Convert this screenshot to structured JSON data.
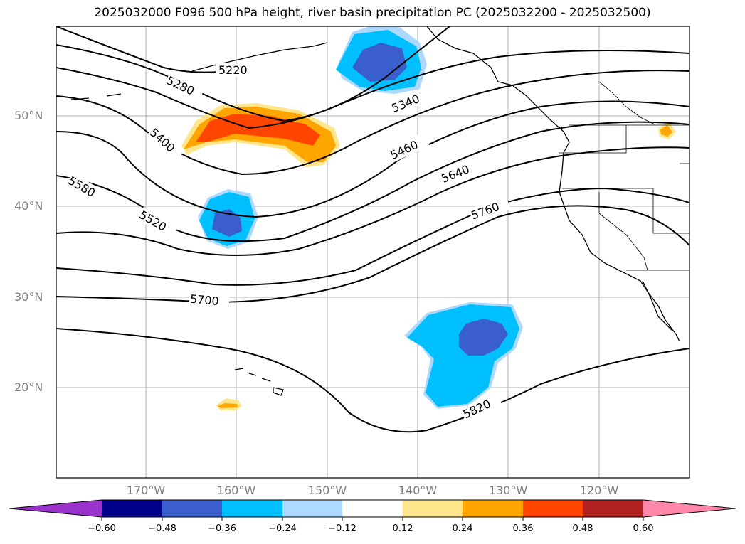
{
  "title": "2025032000 F096 500 hPa height, river basin precipitation PC (2025032200 - 2025032500)",
  "map": {
    "lat_labels": [
      "50°N",
      "40°N",
      "30°N",
      "20°N"
    ],
    "lon_labels": [
      "170°W",
      "160°W",
      "150°W",
      "140°W",
      "130°W",
      "120°W"
    ],
    "contour_labels": [
      "5220",
      "5280",
      "5340",
      "5400",
      "5460",
      "5520",
      "5580",
      "5640",
      "5700",
      "5760",
      "5820"
    ]
  },
  "colorbar": {
    "ticks": [
      "−0.60",
      "−0.48",
      "−0.36",
      "−0.24",
      "−0.12",
      "0.12",
      "0.24",
      "0.36",
      "0.48",
      "0.60"
    ],
    "colors": [
      "#9933cc",
      "#00008b",
      "#3a5fcd",
      "#00bfff",
      "#add8ff",
      "#ffffff",
      "#ffe68c",
      "#ffa500",
      "#ff4500",
      "#b22222",
      "#ff88aa"
    ]
  },
  "legend_colors": {
    "strong_negative": "#3a5fcd",
    "negative": "#00bfff",
    "weak_negative": "#add8ff",
    "weak_positive": "#ffe68c",
    "positive": "#ffa500",
    "strong_positive": "#ff4500"
  }
}
